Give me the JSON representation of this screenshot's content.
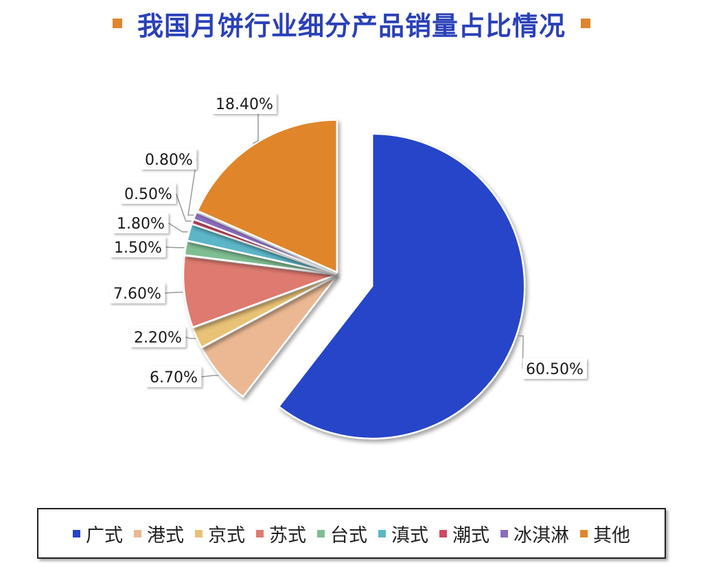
{
  "title": "我国月饼行业细分产品销量占比情况",
  "chart_data": {
    "type": "pie",
    "title": "我国月饼行业细分产品销量占比情况",
    "unit": "%",
    "legend_position": "bottom",
    "slices": [
      {
        "name": "广式",
        "value": 60.5,
        "label": "60.50%",
        "color": "#2644c8"
      },
      {
        "name": "港式",
        "value": 6.7,
        "label": "6.70%",
        "color": "#ebb893"
      },
      {
        "name": "京式",
        "value": 2.2,
        "label": "2.20%",
        "color": "#e8c275"
      },
      {
        "name": "苏式",
        "value": 7.6,
        "label": "7.60%",
        "color": "#de7a70"
      },
      {
        "name": "台式",
        "value": 1.5,
        "label": "1.50%",
        "color": "#7fbe93"
      },
      {
        "name": "滇式",
        "value": 1.8,
        "label": "1.80%",
        "color": "#5bb6c8"
      },
      {
        "name": "潮式",
        "value": 0.5,
        "label": "0.50%",
        "color": "#d04866"
      },
      {
        "name": "冰淇淋",
        "value": 0.8,
        "label": "0.80%",
        "color": "#8b6cbf"
      },
      {
        "name": "其他",
        "value": 18.4,
        "label": "18.40%",
        "color": "#e0852c"
      }
    ]
  }
}
